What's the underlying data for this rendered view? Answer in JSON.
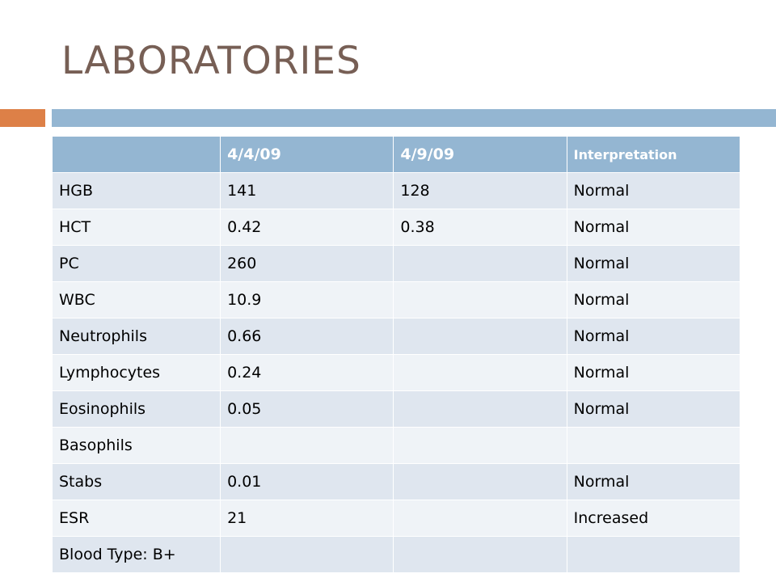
{
  "slide": {
    "title": "LABORATORIES",
    "colors": {
      "title": "#775f55",
      "accent_orange": "#dd8047",
      "accent_blue": "#94b6d2",
      "row_dark": "#dfe6ef",
      "row_light": "#eff3f7"
    }
  },
  "table": {
    "headers": [
      "",
      "4/4/09",
      "4/9/09",
      "Interpretation"
    ],
    "rows": [
      {
        "test": "HGB",
        "d1": "141",
        "d2": "128",
        "interpretation": "Normal"
      },
      {
        "test": "HCT",
        "d1": "0.42",
        "d2": "0.38",
        "interpretation": "Normal"
      },
      {
        "test": "PC",
        "d1": "260",
        "d2": "",
        "interpretation": "Normal"
      },
      {
        "test": "WBC",
        "d1": "10.9",
        "d2": "",
        "interpretation": "Normal"
      },
      {
        "test": "Neutrophils",
        "d1": "0.66",
        "d2": "",
        "interpretation": "Normal"
      },
      {
        "test": "Lymphocytes",
        "d1": "0.24",
        "d2": "",
        "interpretation": "Normal"
      },
      {
        "test": "Eosinophils",
        "d1": "0.05",
        "d2": "",
        "interpretation": "Normal"
      },
      {
        "test": "Basophils",
        "d1": "",
        "d2": "",
        "interpretation": ""
      },
      {
        "test": "Stabs",
        "d1": "0.01",
        "d2": "",
        "interpretation": "Normal"
      },
      {
        "test": "ESR",
        "d1": "21",
        "d2": "",
        "interpretation": "Increased"
      },
      {
        "test": "Blood Type: B+",
        "d1": "",
        "d2": "",
        "interpretation": ""
      }
    ]
  }
}
